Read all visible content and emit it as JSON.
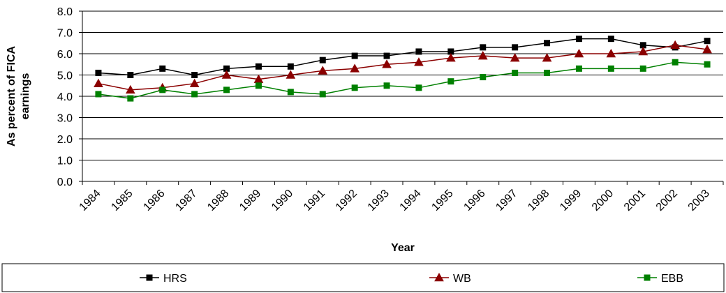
{
  "chart_data": {
    "type": "line",
    "title": "",
    "xlabel": "Year",
    "ylabel_lines": [
      "As percent of FICA",
      "earnings"
    ],
    "ylim": [
      0,
      8
    ],
    "yticks": [
      "0.0",
      "1.0",
      "2.0",
      "3.0",
      "4.0",
      "5.0",
      "6.0",
      "7.0",
      "8.0"
    ],
    "grid": true,
    "legend_position": "bottom",
    "x": [
      "1984",
      "1985",
      "1986",
      "1987",
      "1988",
      "1989",
      "1990",
      "1991",
      "1992",
      "1993",
      "1994",
      "1995",
      "1996",
      "1997",
      "1998",
      "1999",
      "2000",
      "2001",
      "2002",
      "2003"
    ],
    "series": [
      {
        "name": "HRS",
        "color": "#000000",
        "marker": "square",
        "values": [
          5.1,
          5.0,
          5.3,
          5.0,
          5.3,
          5.4,
          5.4,
          5.7,
          5.9,
          5.9,
          6.1,
          6.1,
          6.3,
          6.3,
          6.5,
          6.7,
          6.7,
          6.4,
          6.3,
          6.6
        ]
      },
      {
        "name": "WB",
        "color": "#8b0000",
        "marker": "triangle",
        "values": [
          4.6,
          4.3,
          4.4,
          4.6,
          5.0,
          4.8,
          5.0,
          5.2,
          5.3,
          5.5,
          5.6,
          5.8,
          5.9,
          5.8,
          5.8,
          6.0,
          6.0,
          6.1,
          6.4,
          6.2
        ]
      },
      {
        "name": "EBB",
        "color": "#008000",
        "marker": "square",
        "values": [
          4.1,
          3.9,
          4.3,
          4.1,
          4.3,
          4.5,
          4.2,
          4.1,
          4.4,
          4.5,
          4.4,
          4.7,
          4.9,
          5.1,
          5.1,
          5.3,
          5.3,
          5.3,
          5.6,
          5.5
        ]
      }
    ]
  }
}
